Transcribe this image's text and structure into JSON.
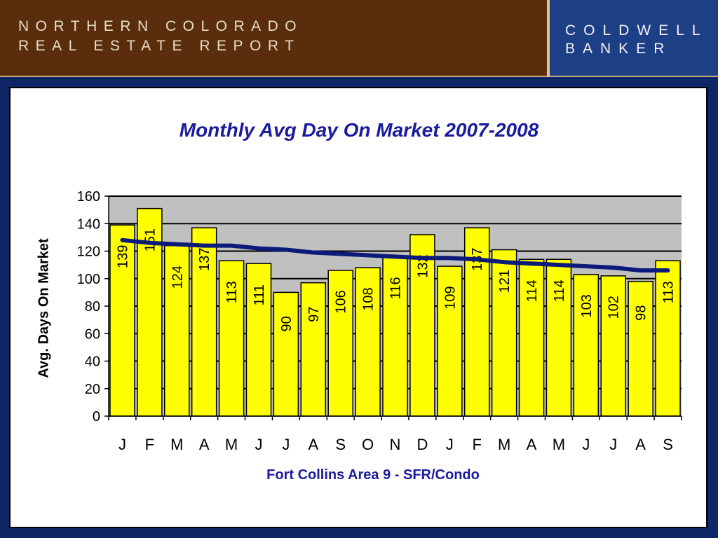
{
  "header": {
    "title_line1": "NORTHERN COLORADO",
    "title_line2": "REAL ESTATE REPORT",
    "brand_line1": "COLDWELL",
    "brand_line2": "BANKER"
  },
  "colors": {
    "header_brown": "#5a2e0c",
    "brand_blue": "#1d3f86",
    "background_navy": "#0e2566",
    "bar_fill": "#ffff00",
    "plot_background": "#c0c0c0",
    "trend_line": "#0c1a7a",
    "title_blue": "#1b1b9e"
  },
  "chart_data": {
    "type": "bar",
    "title": "Monthly Avg Day On Market 2007-2008",
    "xlabel": "Fort Collins Area 9 - SFR/Condo",
    "ylabel": "Avg. Days On Market",
    "ylim": [
      0,
      160
    ],
    "yticks": [
      0,
      20,
      40,
      60,
      80,
      100,
      120,
      140,
      160
    ],
    "grid": true,
    "categories": [
      "J",
      "F",
      "M",
      "A",
      "M",
      "J",
      "J",
      "A",
      "S",
      "O",
      "N",
      "D",
      "J",
      "F",
      "M",
      "A",
      "M",
      "J",
      "J",
      "A",
      "S"
    ],
    "values": [
      139,
      151,
      124,
      137,
      113,
      111,
      90,
      97,
      106,
      108,
      116,
      132,
      109,
      137,
      121,
      114,
      114,
      103,
      102,
      98,
      113
    ],
    "trend_values": [
      128,
      126,
      125,
      124,
      124,
      122,
      121,
      119,
      118,
      117,
      116,
      115,
      115,
      114,
      112,
      111,
      110,
      109,
      108,
      106,
      106
    ]
  }
}
